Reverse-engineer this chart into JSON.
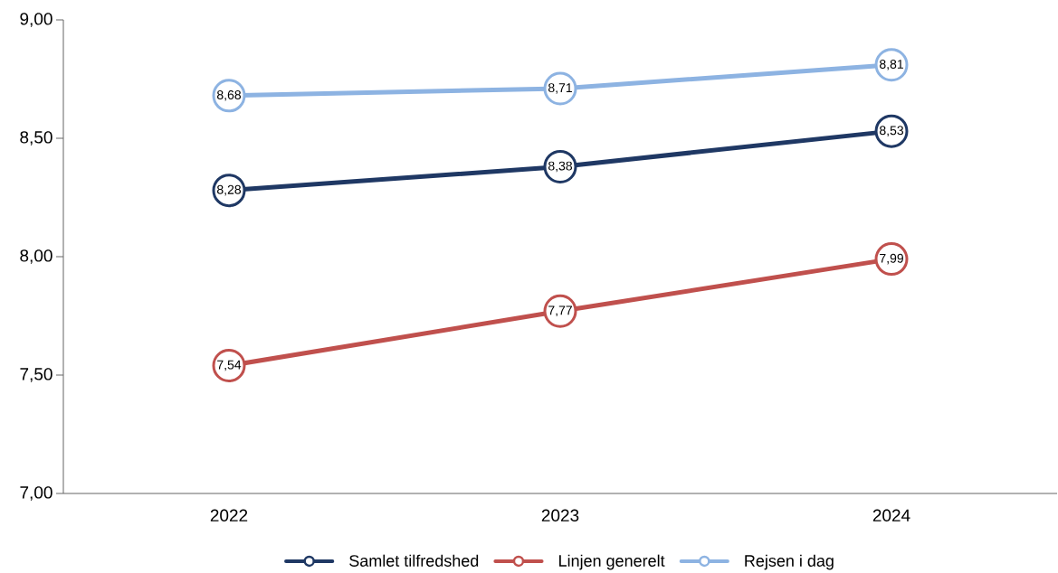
{
  "chart_data": {
    "type": "line",
    "categories": [
      "2022",
      "2023",
      "2024"
    ],
    "series": [
      {
        "name": "Samlet tilfredshed",
        "color": "#1f3864",
        "values": [
          8.28,
          8.38,
          8.53
        ],
        "value_labels": [
          "8,28",
          "8,38",
          "8,53"
        ]
      },
      {
        "name": "Linjen generelt",
        "color": "#c0504d",
        "values": [
          7.54,
          7.77,
          7.99
        ],
        "value_labels": [
          "7,54",
          "7,77",
          "7,99"
        ]
      },
      {
        "name": "Rejsen i dag",
        "color": "#8db3e2",
        "values": [
          8.68,
          8.71,
          8.81
        ],
        "value_labels": [
          "8,68",
          "8,71",
          "8,81"
        ]
      }
    ],
    "ylim": [
      7,
      9
    ],
    "yticks": [
      {
        "value": 7,
        "label": "7,00"
      },
      {
        "value": 7.5,
        "label": "7,50"
      },
      {
        "value": 8,
        "label": "8,00"
      },
      {
        "value": 8.5,
        "label": "8,50"
      },
      {
        "value": 9,
        "label": "9,00"
      }
    ],
    "legend": "bottom",
    "marker": "circle",
    "line_style": "solid",
    "grid": false
  }
}
